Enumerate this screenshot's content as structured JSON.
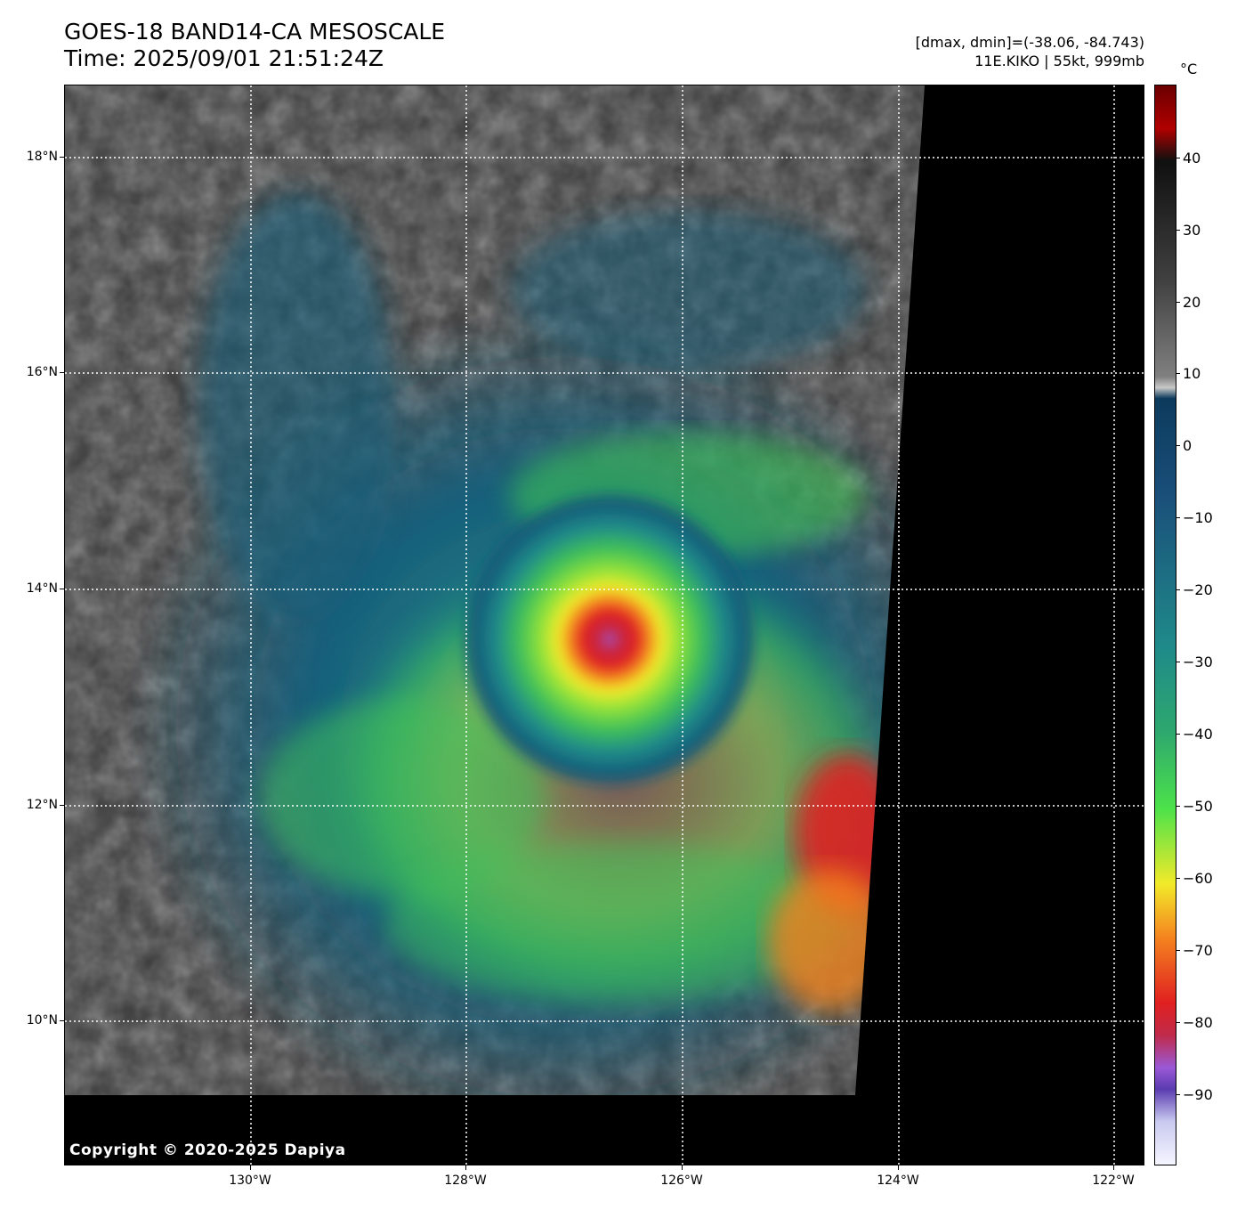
{
  "title": {
    "line1": "GOES-18 BAND14-CA MESOSCALE",
    "line2": "Time: 2025/09/01 21:51:24Z"
  },
  "info": {
    "range": "[dmax, dmin]=(-38.06, -84.743)",
    "storm": "11E.KIKO | 55kt, 999mb"
  },
  "copyright": "Copyright © 2020-2025 Dapiya",
  "map": {
    "lat_ticks": [
      "18°N",
      "16°N",
      "14°N",
      "12°N",
      "10°N"
    ],
    "lon_ticks": [
      "130°W",
      "128°W",
      "126°W",
      "124°W",
      "122°W"
    ],
    "storm_center": {
      "lat": 13.4,
      "lon": -126.6
    }
  },
  "colorbar": {
    "unit": "°C",
    "ticks": [
      "40",
      "30",
      "20",
      "10",
      "0",
      "−10",
      "−20",
      "−30",
      "−40",
      "−50",
      "−60",
      "−70",
      "−80",
      "−90"
    ],
    "range": [
      -100,
      49
    ],
    "colors": {
      "hot": "#6b0000",
      "warm": "#ffffff",
      "gray": "#808080",
      "dark_blue": "#0c3a5c",
      "teal": "#1f8a8a",
      "green": "#4ce24a",
      "yellow": "#f2ea2a",
      "orange": "#f4831f",
      "red": "#e02020",
      "purple": "#9b59d6",
      "light": "#f5f5ff"
    }
  }
}
